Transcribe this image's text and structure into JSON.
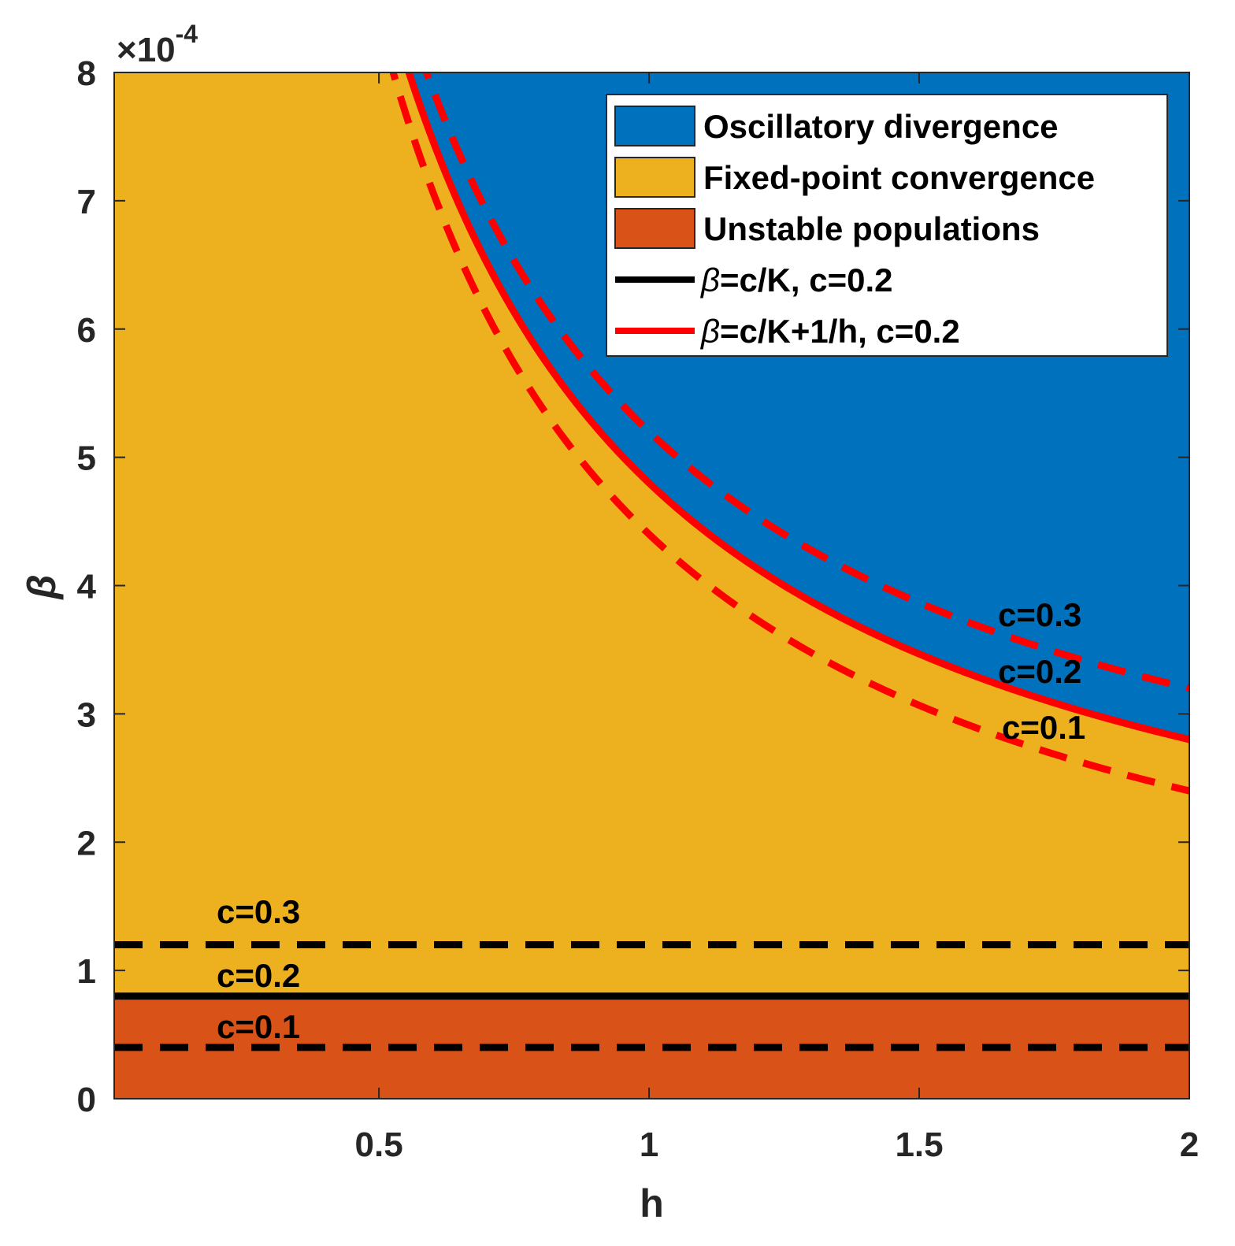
{
  "chart_data": {
    "type": "area",
    "xlabel": "h",
    "ylabel": "β",
    "xlim": [
      0.01,
      2
    ],
    "ylim": [
      0,
      8
    ],
    "y_exponent_label": "×10",
    "y_exponent_power": "-4",
    "xticks": [
      {
        "value": 0.5,
        "label": "0.5"
      },
      {
        "value": 1,
        "label": "1"
      },
      {
        "value": 1.5,
        "label": "1.5"
      },
      {
        "value": 2,
        "label": "2"
      }
    ],
    "yticks": [
      {
        "value": 0,
        "label": "0"
      },
      {
        "value": 1,
        "label": "1"
      },
      {
        "value": 2,
        "label": "2"
      },
      {
        "value": 3,
        "label": "3"
      },
      {
        "value": 4,
        "label": "4"
      },
      {
        "value": 5,
        "label": "5"
      },
      {
        "value": 6,
        "label": "6"
      },
      {
        "value": 7,
        "label": "7"
      },
      {
        "value": 8,
        "label": "8"
      }
    ],
    "regions": [
      {
        "name": "Oscillatory divergence",
        "color": "#0072BD"
      },
      {
        "name": "Fixed-point convergence",
        "color": "#EDB120"
      },
      {
        "name": "Unstable populations",
        "color": "#D95319"
      }
    ],
    "horizontal_lines": [
      {
        "c": 0.1,
        "y": 0.4,
        "style": "dashed",
        "color": "#000000",
        "label": "c=0.1"
      },
      {
        "c": 0.2,
        "y": 0.8,
        "style": "solid",
        "color": "#000000",
        "label": "c=0.2"
      },
      {
        "c": 0.3,
        "y": 1.2,
        "style": "dashed",
        "color": "#000000",
        "label": "c=0.3"
      }
    ],
    "curves": [
      {
        "c": 0.1,
        "offset": 0.4,
        "numerator": 4.0,
        "style": "dashed",
        "color": "#FF0000",
        "label": "c=0.1"
      },
      {
        "c": 0.2,
        "offset": 0.8,
        "numerator": 4.0,
        "style": "solid",
        "color": "#FF0000",
        "label": "c=0.2"
      },
      {
        "c": 0.3,
        "offset": 1.2,
        "numerator": 4.0,
        "style": "dashed",
        "color": "#FF0000",
        "label": "c=0.3"
      }
    ],
    "curve_formula": "β = c/K + 1/h (shown in units of 1e-4)",
    "legend": {
      "placement": "top-right",
      "entries": [
        {
          "kind": "patch",
          "color": "#0072BD",
          "label": "Oscillatory divergence"
        },
        {
          "kind": "patch",
          "color": "#EDB120",
          "label": "Fixed-point convergence"
        },
        {
          "kind": "patch",
          "color": "#D95319",
          "label": "Unstable populations"
        },
        {
          "kind": "line",
          "color": "#000000",
          "label_symbol": "β",
          "label_rest": "=c/K, c=0.2"
        },
        {
          "kind": "line",
          "color": "#FF0000",
          "label_symbol": "β",
          "label_rest": "=c/K+1/h, c=0.2"
        }
      ]
    }
  }
}
